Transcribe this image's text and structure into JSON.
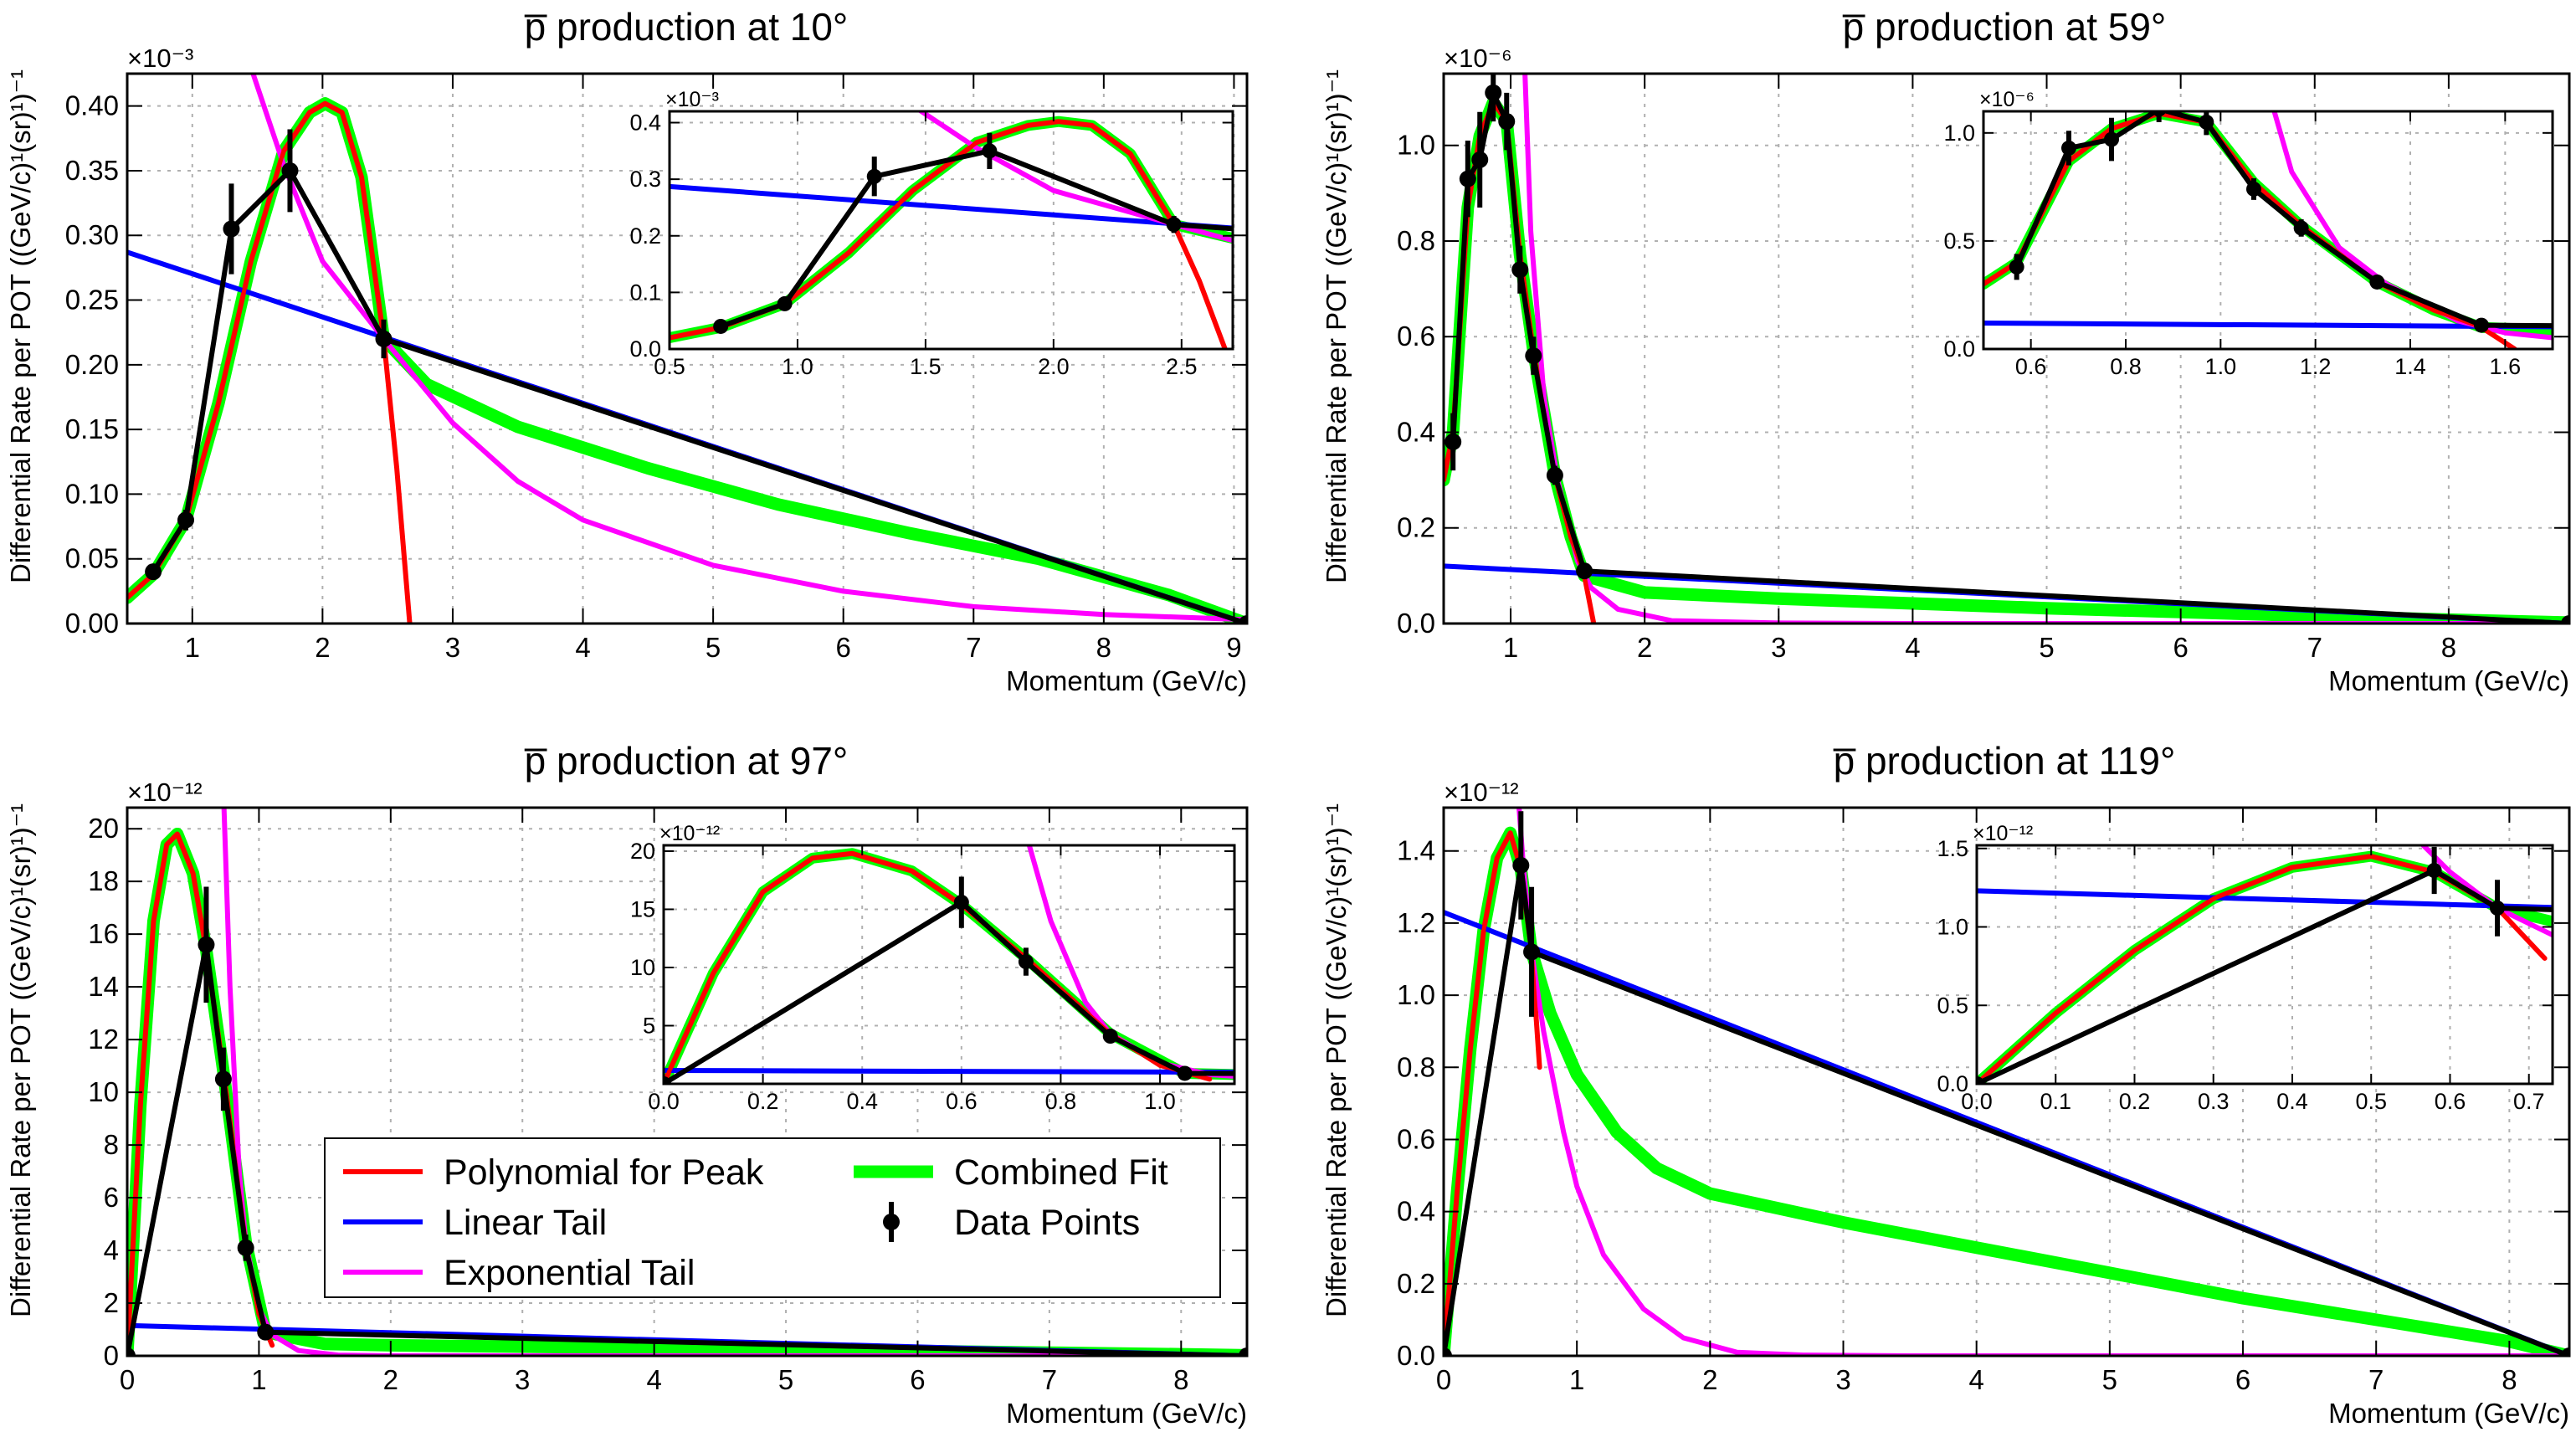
{
  "figure_type": "2x2 grid of ROOT-style fit plots with insets",
  "legend": {
    "entries": [
      {
        "label": "Polynomial for Peak",
        "color": "#ff0000",
        "style": "line"
      },
      {
        "label": "Combined Fit",
        "color": "#00ff00",
        "style": "thick-line"
      },
      {
        "label": "Linear Tail",
        "color": "#0000ff",
        "style": "line"
      },
      {
        "label": "Data Points",
        "color": "#000000",
        "style": "marker-errorbar"
      },
      {
        "label": "Exponential Tail",
        "color": "#ff00ff",
        "style": "line"
      }
    ]
  },
  "colors": {
    "polynomial": "#ff0000",
    "combined": "#00ff00",
    "linear": "#0000ff",
    "exponential": "#ff00ff",
    "data": "#000000",
    "grid": "#b0b0b0"
  },
  "chart_data": [
    {
      "type": "line",
      "title": "p̅ production at 10°",
      "xlabel": "Momentum (GeV/c)",
      "ylabel": "Differential Rate per POT ((GeV/c)¹(sr)¹)⁻¹",
      "y_exponent": "×10⁻³",
      "xlim": [
        0.5,
        9.1
      ],
      "ylim": [
        0,
        0.425
      ],
      "xticks": [
        1,
        2,
        3,
        4,
        5,
        6,
        7,
        8,
        9
      ],
      "yticks": [
        0,
        0.05,
        0.1,
        0.15,
        0.2,
        0.25,
        0.3,
        0.35,
        0.4
      ],
      "ytick_labels": [
        "0.00",
        "0.05",
        "0.10",
        "0.15",
        "0.20",
        "0.25",
        "0.30",
        "0.35",
        "0.40"
      ],
      "grid": true,
      "data_points": {
        "x": [
          0.7,
          0.95,
          1.3,
          1.75,
          2.47,
          9.1
        ],
        "y": [
          0.04,
          0.08,
          0.305,
          0.35,
          0.22,
          0.0
        ],
        "yerr": [
          0.005,
          0.008,
          0.035,
          0.032,
          0.015,
          0.0
        ]
      },
      "series": [
        {
          "name": "Polynomial for Peak",
          "x": [
            0.5,
            0.7,
            0.95,
            1.2,
            1.45,
            1.7,
            1.9,
            2.02,
            2.15,
            2.3,
            2.47,
            2.57,
            2.67
          ],
          "y": [
            0.02,
            0.038,
            0.08,
            0.17,
            0.28,
            0.365,
            0.395,
            0.402,
            0.395,
            0.345,
            0.22,
            0.12,
            0.0
          ]
        },
        {
          "name": "Combined Fit",
          "x": [
            0.5,
            0.7,
            0.95,
            1.2,
            1.45,
            1.7,
            1.9,
            2.02,
            2.15,
            2.3,
            2.47,
            2.8,
            3.5,
            4.5,
            5.5,
            6.5,
            7.5,
            8.5,
            9.1
          ],
          "y": [
            0.02,
            0.038,
            0.08,
            0.17,
            0.28,
            0.365,
            0.395,
            0.402,
            0.395,
            0.345,
            0.22,
            0.185,
            0.152,
            0.12,
            0.092,
            0.07,
            0.05,
            0.022,
            0.0
          ]
        },
        {
          "name": "Linear Tail",
          "x": [
            0.5,
            9.1
          ],
          "y": [
            0.287,
            0.0
          ]
        },
        {
          "name": "Exponential Tail",
          "x": [
            1.45,
            1.7,
            2.0,
            2.47,
            3.0,
            3.5,
            4.0,
            5.0,
            6.0,
            7.0,
            8.0,
            9.1
          ],
          "y": [
            0.43,
            0.355,
            0.28,
            0.22,
            0.155,
            0.11,
            0.08,
            0.045,
            0.025,
            0.013,
            0.007,
            0.003
          ]
        }
      ],
      "inset": {
        "xlim": [
          0.5,
          2.7
        ],
        "ylim": [
          0,
          0.42
        ],
        "xticks": [
          0.5,
          1.0,
          1.5,
          2.0,
          2.5
        ],
        "xtick_labels": [
          "0.5",
          "1.0",
          "1.5",
          "2.0",
          "2.5"
        ],
        "yticks": [
          0,
          0.1,
          0.2,
          0.3,
          0.4
        ],
        "ytick_labels": [
          "0.0",
          "0.1",
          "0.2",
          "0.3",
          "0.4"
        ],
        "y_exponent": "×10⁻³"
      }
    },
    {
      "type": "line",
      "title": "p̅ production at 59°",
      "xlabel": "Momentum (GeV/c)",
      "ylabel": "Differential Rate per POT ((GeV/c)¹(sr)¹)⁻¹",
      "y_exponent": "×10⁻⁶",
      "xlim": [
        0.5,
        8.9
      ],
      "ylim": [
        0,
        1.15
      ],
      "xticks": [
        1,
        2,
        3,
        4,
        5,
        6,
        7,
        8
      ],
      "yticks": [
        0,
        0.2,
        0.4,
        0.6,
        0.8,
        1.0
      ],
      "ytick_labels": [
        "0.0",
        "0.2",
        "0.4",
        "0.6",
        "0.8",
        "1.0"
      ],
      "grid": true,
      "data_points": {
        "x": [
          0.57,
          0.68,
          0.77,
          0.87,
          0.97,
          1.07,
          1.17,
          1.33,
          1.55,
          8.9
        ],
        "y": [
          0.38,
          0.93,
          0.97,
          1.11,
          1.05,
          0.74,
          0.56,
          0.31,
          0.11,
          0.0
        ],
        "yerr": [
          0.06,
          0.08,
          0.1,
          0.06,
          0.06,
          0.05,
          0.04,
          0.02,
          0.01,
          0.0
        ]
      },
      "series": [
        {
          "name": "Polynomial for Peak",
          "x": [
            0.5,
            0.57,
            0.68,
            0.77,
            0.87,
            0.97,
            1.07,
            1.17,
            1.33,
            1.45,
            1.55,
            1.62
          ],
          "y": [
            0.3,
            0.4,
            0.87,
            1.02,
            1.09,
            1.05,
            0.77,
            0.57,
            0.31,
            0.18,
            0.1,
            0.0
          ]
        },
        {
          "name": "Combined Fit",
          "x": [
            0.5,
            0.57,
            0.68,
            0.77,
            0.87,
            0.97,
            1.07,
            1.17,
            1.33,
            1.45,
            1.55,
            2.0,
            3.0,
            4.0,
            5.0,
            6.0,
            7.0,
            8.0,
            8.9
          ],
          "y": [
            0.3,
            0.4,
            0.87,
            1.02,
            1.09,
            1.05,
            0.77,
            0.57,
            0.31,
            0.18,
            0.1,
            0.065,
            0.052,
            0.042,
            0.032,
            0.024,
            0.016,
            0.008,
            0.002
          ]
        },
        {
          "name": "Linear Tail",
          "x": [
            0.5,
            8.9
          ],
          "y": [
            0.12,
            0.0
          ]
        },
        {
          "name": "Exponential Tail",
          "x": [
            1.1,
            1.15,
            1.25,
            1.35,
            1.5,
            1.6,
            1.8,
            2.2,
            3.0,
            4.0,
            8.9
          ],
          "y": [
            1.2,
            0.82,
            0.47,
            0.3,
            0.13,
            0.075,
            0.03,
            0.006,
            0.001,
            0.0,
            0.0
          ]
        }
      ],
      "inset": {
        "xlim": [
          0.5,
          1.7
        ],
        "ylim": [
          0,
          1.1
        ],
        "xticks": [
          0.6,
          0.8,
          1.0,
          1.2,
          1.4,
          1.6
        ],
        "xtick_labels": [
          "0.6",
          "0.8",
          "1.0",
          "1.2",
          "1.4",
          "1.6"
        ],
        "yticks": [
          0,
          0.5,
          1.0
        ],
        "ytick_labels": [
          "0.0",
          "0.5",
          "1.0"
        ],
        "y_exponent": "×10⁻⁶"
      }
    },
    {
      "type": "line",
      "title": "p̅ production at 97°",
      "xlabel": "Momentum (GeV/c)",
      "ylabel": "Differential Rate per POT ((GeV/c)¹(sr)¹)⁻¹",
      "y_exponent": "×10⁻¹²",
      "xlim": [
        0.0,
        8.5
      ],
      "ylim": [
        0,
        20.8
      ],
      "xticks": [
        0,
        1,
        2,
        3,
        4,
        5,
        6,
        7,
        8
      ],
      "yticks": [
        0,
        2,
        4,
        6,
        8,
        10,
        12,
        14,
        16,
        18,
        20
      ],
      "ytick_labels": [
        "0",
        "2",
        "4",
        "6",
        "8",
        "10",
        "12",
        "14",
        "16",
        "18",
        "20"
      ],
      "grid": true,
      "data_points": {
        "x": [
          0.0,
          0.6,
          0.73,
          0.9,
          1.05,
          8.5
        ],
        "y": [
          0.0,
          15.6,
          10.5,
          4.1,
          0.9,
          0.0
        ],
        "yerr": [
          0.0,
          2.2,
          1.2,
          0.5,
          0.2,
          0.0
        ]
      },
      "series": [
        {
          "name": "Polynomial for Peak",
          "x": [
            0.0,
            0.1,
            0.2,
            0.3,
            0.38,
            0.5,
            0.6,
            0.73,
            0.9,
            1.0,
            1.1
          ],
          "y": [
            0.0,
            9.5,
            16.5,
            19.4,
            19.8,
            18.3,
            15.4,
            10.8,
            4.3,
            1.6,
            0.4
          ]
        },
        {
          "name": "Combined Fit",
          "x": [
            0.0,
            0.1,
            0.2,
            0.3,
            0.38,
            0.5,
            0.6,
            0.73,
            0.9,
            1.05,
            1.5,
            2.0,
            3.0,
            4.0,
            5.0,
            6.0,
            7.0,
            8.0,
            8.5
          ],
          "y": [
            0.0,
            9.5,
            16.5,
            19.4,
            19.8,
            18.3,
            15.4,
            10.8,
            4.3,
            0.9,
            0.45,
            0.4,
            0.35,
            0.3,
            0.24,
            0.18,
            0.12,
            0.06,
            0.02
          ]
        },
        {
          "name": "Linear Tail",
          "x": [
            0.0,
            8.5
          ],
          "y": [
            1.15,
            0.0
          ]
        },
        {
          "name": "Exponential Tail",
          "x": [
            0.73,
            0.78,
            0.85,
            0.9,
            1.0,
            1.1,
            1.3,
            1.6,
            2.0,
            8.5
          ],
          "y": [
            21.5,
            14.0,
            7.0,
            4.3,
            1.8,
            0.8,
            0.2,
            0.03,
            0.0,
            0.0
          ]
        }
      ],
      "inset": {
        "xlim": [
          0.0,
          1.15
        ],
        "ylim": [
          0,
          20.5
        ],
        "xticks": [
          0.0,
          0.2,
          0.4,
          0.6,
          0.8,
          1.0
        ],
        "xtick_labels": [
          "0.0",
          "0.2",
          "0.4",
          "0.6",
          "0.8",
          "1.0"
        ],
        "yticks": [
          5,
          10,
          15,
          20
        ],
        "ytick_labels": [
          "5",
          "10",
          "15",
          "20"
        ],
        "y_exponent": "×10⁻¹²"
      }
    },
    {
      "type": "line",
      "title": "p̅ production at 119°",
      "xlabel": "Momentum (GeV/c)",
      "ylabel": "Differential Rate per POT ((GeV/c)¹(sr)¹)⁻¹",
      "y_exponent": "×10⁻¹²",
      "xlim": [
        0.0,
        8.45
      ],
      "ylim": [
        0,
        1.52
      ],
      "xticks": [
        0,
        1,
        2,
        3,
        4,
        5,
        6,
        7,
        8
      ],
      "yticks": [
        0,
        0.2,
        0.4,
        0.6,
        0.8,
        1.0,
        1.2,
        1.4
      ],
      "ytick_labels": [
        "0.0",
        "0.2",
        "0.4",
        "0.6",
        "0.8",
        "1.0",
        "1.2",
        "1.4"
      ],
      "grid": true,
      "data_points": {
        "x": [
          0.0,
          0.58,
          0.66,
          8.45
        ],
        "y": [
          0.0,
          1.36,
          1.12,
          0.0
        ],
        "yerr": [
          0.0,
          0.15,
          0.18,
          0.0
        ]
      },
      "series": [
        {
          "name": "Polynomial for Peak",
          "x": [
            0.0,
            0.1,
            0.2,
            0.3,
            0.4,
            0.5,
            0.58,
            0.66,
            0.72
          ],
          "y": [
            0.0,
            0.45,
            0.85,
            1.18,
            1.38,
            1.45,
            1.35,
            1.12,
            0.8
          ]
        },
        {
          "name": "Combined Fit",
          "x": [
            0.0,
            0.1,
            0.2,
            0.3,
            0.4,
            0.5,
            0.58,
            0.66,
            0.8,
            1.0,
            1.3,
            1.6,
            2.0,
            3.0,
            4.0,
            5.0,
            6.0,
            7.0,
            8.0,
            8.45
          ],
          "y": [
            0.0,
            0.45,
            0.85,
            1.18,
            1.38,
            1.45,
            1.35,
            1.12,
            0.95,
            0.78,
            0.62,
            0.52,
            0.45,
            0.37,
            0.3,
            0.23,
            0.16,
            0.1,
            0.04,
            0.0
          ]
        },
        {
          "name": "Linear Tail",
          "x": [
            0.0,
            8.45
          ],
          "y": [
            1.23,
            0.0
          ]
        },
        {
          "name": "Exponential Tail",
          "x": [
            0.55,
            0.6,
            0.66,
            0.75,
            0.9,
            1.0,
            1.2,
            1.5,
            1.8,
            2.2,
            2.7,
            3.5,
            8.45
          ],
          "y": [
            1.6,
            1.35,
            1.12,
            0.9,
            0.62,
            0.47,
            0.28,
            0.13,
            0.05,
            0.01,
            0.002,
            0.0,
            0.0
          ]
        }
      ],
      "inset": {
        "xlim": [
          0.0,
          0.73
        ],
        "ylim": [
          0,
          1.52
        ],
        "xticks": [
          0.0,
          0.1,
          0.2,
          0.3,
          0.4,
          0.5,
          0.6,
          0.7
        ],
        "xtick_labels": [
          "0.0",
          "0.1",
          "0.2",
          "0.3",
          "0.4",
          "0.5",
          "0.6",
          "0.7"
        ],
        "yticks": [
          0.0,
          0.5,
          1.0,
          1.5
        ],
        "ytick_labels": [
          "0.0",
          "0.5",
          "1.0",
          "1.5"
        ],
        "y_exponent": "×10⁻¹²"
      }
    }
  ]
}
